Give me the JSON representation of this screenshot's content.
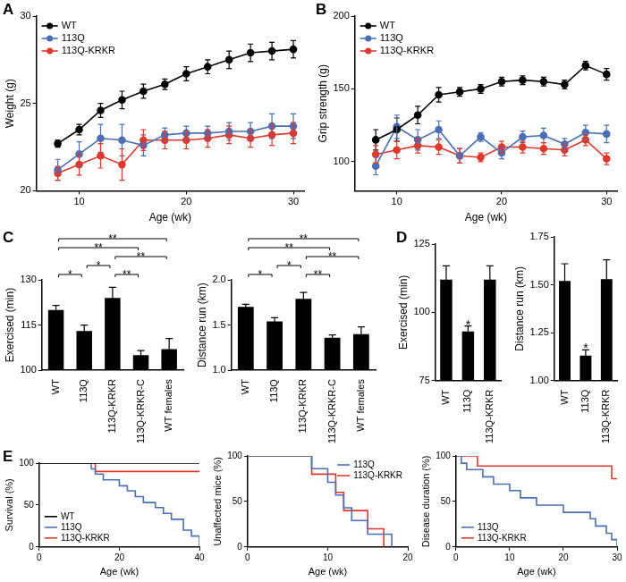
{
  "chart_data": [
    {
      "panel": "A",
      "type": "line",
      "x_label": "Age (wk)",
      "y_label": "Weight (g)",
      "grid": false,
      "legend": "upper left",
      "xlim": [
        6,
        31
      ],
      "xticks": [
        10,
        20,
        30
      ],
      "ylim": [
        20,
        30
      ],
      "yticks": [
        20,
        25,
        30
      ],
      "x": [
        8,
        10,
        12,
        14,
        16,
        18,
        20,
        22,
        24,
        26,
        28,
        30
      ],
      "series": [
        {
          "name": "WT",
          "color": "#000000",
          "marker": "circle",
          "line_style": "solid",
          "values": [
            22.7,
            23.5,
            24.6,
            25.2,
            25.7,
            26.1,
            26.7,
            27.1,
            27.5,
            27.9,
            28.0,
            28.1
          ],
          "errors": [
            0.2,
            0.3,
            0.4,
            0.5,
            0.4,
            0.3,
            0.4,
            0.4,
            0.5,
            0.5,
            0.5,
            0.5
          ]
        },
        {
          "name": "113Q",
          "color": "#4a6fb5",
          "marker": "circle",
          "line_style": "solid",
          "values": [
            21.2,
            22.1,
            23.0,
            22.9,
            22.6,
            23.2,
            23.3,
            23.3,
            23.4,
            23.4,
            23.7,
            23.7
          ],
          "errors": [
            0.6,
            0.7,
            0.8,
            0.9,
            0.6,
            0.4,
            0.4,
            0.4,
            0.5,
            0.5,
            0.7,
            0.7
          ]
        },
        {
          "name": "113Q-KRKR",
          "color": "#e0392b",
          "marker": "circle",
          "line_style": "solid",
          "values": [
            21.0,
            21.5,
            22.0,
            21.5,
            22.9,
            22.9,
            22.9,
            23.0,
            23.2,
            23.0,
            23.2,
            23.3
          ],
          "errors": [
            0.4,
            0.6,
            0.7,
            0.9,
            0.6,
            0.5,
            0.5,
            0.5,
            0.5,
            0.5,
            0.6,
            0.6
          ]
        }
      ]
    },
    {
      "panel": "B",
      "type": "line",
      "x_label": "Age (wk)",
      "y_label": "Grip strength (g)",
      "grid": false,
      "legend": "upper left",
      "xlim": [
        6,
        31
      ],
      "xticks": [
        10,
        20,
        30
      ],
      "ylim": [
        80,
        200
      ],
      "yticks": [
        100,
        150,
        200
      ],
      "x": [
        8,
        10,
        12,
        14,
        16,
        18,
        20,
        22,
        24,
        26,
        28,
        30
      ],
      "series": [
        {
          "name": "WT",
          "color": "#000000",
          "marker": "circle",
          "line_style": "solid",
          "values": [
            115,
            122,
            132,
            146,
            148,
            150,
            155,
            156,
            155,
            153,
            166,
            160
          ],
          "errors": [
            7,
            8,
            6,
            5,
            3,
            3,
            3,
            3,
            3,
            3,
            3,
            4
          ]
        },
        {
          "name": "113Q",
          "color": "#4a6fb5",
          "marker": "circle",
          "line_style": "solid",
          "values": [
            97,
            124,
            115,
            122,
            104,
            117,
            106,
            117,
            118,
            112,
            120,
            119
          ],
          "errors": [
            6,
            8,
            7,
            6,
            5,
            3,
            4,
            4,
            5,
            4,
            5,
            6
          ]
        },
        {
          "name": "113Q-KRKR",
          "color": "#e0392b",
          "marker": "circle",
          "line_style": "solid",
          "values": [
            105,
            108,
            111,
            110,
            104,
            103,
            110,
            110,
            109,
            108,
            115,
            102
          ],
          "errors": [
            6,
            6,
            5,
            5,
            5,
            3,
            4,
            4,
            4,
            4,
            4,
            4
          ]
        }
      ]
    },
    {
      "panel": "C",
      "type": "bar",
      "y_label": "Exercised (min)",
      "grid": false,
      "color": "#000000",
      "categories": [
        "WT",
        "113Q",
        "113Q-KRKR",
        "113Q-KRKR-C",
        "WT females"
      ],
      "values": [
        120,
        113,
        124,
        105,
        107
      ],
      "errors": [
        1.5,
        2,
        3.5,
        1.5,
        3.5
      ],
      "ylim": [
        100,
        130
      ],
      "yticks": [
        100,
        115,
        130
      ],
      "significance": [
        {
          "from": "WT",
          "to": "113Q",
          "label": "*"
        },
        {
          "from": "113Q",
          "to": "113Q-KRKR",
          "label": "*"
        },
        {
          "from": "WT",
          "to": "113Q-KRKR-C",
          "label": "**"
        },
        {
          "from": "WT",
          "to": "WT females",
          "label": "**"
        },
        {
          "from": "113Q-KRKR",
          "to": "113Q-KRKR-C",
          "label": "**"
        },
        {
          "from": "113Q-KRKR",
          "to": "WT females",
          "label": "**"
        }
      ]
    },
    {
      "type": "bar",
      "y_label": "Distance run (km)",
      "grid": false,
      "color": "#000000",
      "categories": [
        "WT",
        "113Q",
        "113Q-KRKR",
        "113Q-KRKR-C",
        "WT females"
      ],
      "values": [
        1.7,
        1.54,
        1.79,
        1.36,
        1.4
      ],
      "errors": [
        0.03,
        0.04,
        0.07,
        0.03,
        0.08
      ],
      "ylim": [
        1.0,
        2.0
      ],
      "yticks": [
        {
          "value": 1.0,
          "label": "1.0"
        },
        {
          "value": 1.5,
          "label": "1.5"
        },
        {
          "value": 2.0,
          "label": "2.0"
        }
      ],
      "significance": [
        {
          "from": "WT",
          "to": "113Q",
          "label": "*"
        },
        {
          "from": "113Q",
          "to": "113Q-KRKR",
          "label": "*"
        },
        {
          "from": "WT",
          "to": "113Q-KRKR-C",
          "label": "**"
        },
        {
          "from": "WT",
          "to": "WT females",
          "label": "**"
        },
        {
          "from": "113Q-KRKR",
          "to": "113Q-KRKR-C",
          "label": "**"
        },
        {
          "from": "113Q-KRKR",
          "to": "WT females",
          "label": "**"
        }
      ]
    },
    {
      "panel": "D",
      "type": "bar",
      "y_label": "Exercised (min)",
      "grid": false,
      "color": "#000000",
      "categories": [
        "WT",
        "113Q",
        "113Q-KRKR"
      ],
      "values": [
        112,
        93,
        112
      ],
      "errors": [
        5,
        2,
        5
      ],
      "ylim": [
        75,
        125
      ],
      "yticks": [
        75,
        100,
        125
      ],
      "stars": [
        {
          "category": "113Q",
          "label": "*"
        }
      ]
    },
    {
      "type": "bar",
      "y_label": "Distance run (km)",
      "grid": false,
      "color": "#000000",
      "categories": [
        "WT",
        "113Q",
        "113Q-KRKR"
      ],
      "values": [
        1.52,
        1.13,
        1.53
      ],
      "errors": [
        0.09,
        0.03,
        0.1
      ],
      "ylim": [
        1.0,
        1.75
      ],
      "yticks": [
        {
          "value": 1.0,
          "label": "1.00"
        },
        {
          "value": 1.25,
          "label": "1.25"
        },
        {
          "value": 1.5,
          "label": "1.50"
        },
        {
          "value": 1.75,
          "label": "1.75"
        }
      ],
      "stars": [
        {
          "category": "113Q",
          "label": "*"
        }
      ]
    },
    {
      "panel": "E",
      "type": "line",
      "x_label": "Age (wk)",
      "y_label": "Survival (%)",
      "grid": false,
      "legend": "lower left",
      "xlim": [
        0,
        40
      ],
      "xticks": [
        0,
        20,
        40
      ],
      "ylim": [
        0,
        100
      ],
      "yticks": [
        0,
        50,
        100
      ],
      "series": [
        {
          "name": "WT",
          "color": "#000000",
          "line_style": "step",
          "x": [
            0,
            40
          ],
          "values": [
            100,
            100
          ]
        },
        {
          "name": "113Q",
          "color": "#4a6fb5",
          "line_style": "step",
          "x": [
            0,
            13,
            14,
            16,
            20,
            22,
            24,
            26,
            29,
            31,
            33,
            36,
            38,
            40
          ],
          "values": [
            100,
            93,
            87,
            80,
            73,
            67,
            60,
            53,
            47,
            40,
            33,
            20,
            13,
            0
          ]
        },
        {
          "name": "113Q-KRKR",
          "color": "#e0392b",
          "line_style": "step",
          "x": [
            0,
            14,
            40
          ],
          "values": [
            100,
            90,
            90
          ]
        }
      ]
    },
    {
      "type": "line",
      "x_label": "Age (wk)",
      "y_label": "Unaffected mice (%)",
      "grid": false,
      "legend": "upper right",
      "xlim": [
        0,
        20
      ],
      "xticks": [
        0,
        10,
        20
      ],
      "ylim": [
        0,
        100
      ],
      "yticks": [
        0,
        50,
        100
      ],
      "series": [
        {
          "name": "113Q",
          "color": "#4a6fb5",
          "line_style": "step",
          "x": [
            0,
            8,
            10,
            11,
            12,
            13,
            15,
            18
          ],
          "values": [
            100,
            86,
            71,
            57,
            43,
            29,
            14,
            0
          ]
        },
        {
          "name": "113Q-KRKR",
          "color": "#e0392b",
          "line_style": "step",
          "x": [
            0,
            8,
            11,
            12,
            15,
            17
          ],
          "values": [
            100,
            80,
            60,
            40,
            20,
            0
          ]
        }
      ]
    },
    {
      "type": "line",
      "x_label": "Age (wk)",
      "y_label": "Disease duration (%)",
      "grid": false,
      "legend": "lower left",
      "xlim": [
        0,
        30
      ],
      "xticks": [
        0,
        10,
        20,
        30
      ],
      "ylim": [
        0,
        100
      ],
      "yticks": [
        0,
        50,
        100
      ],
      "series": [
        {
          "name": "113Q",
          "color": "#4a6fb5",
          "line_style": "step",
          "x": [
            0,
            1,
            2,
            5,
            7,
            10,
            12,
            15,
            20,
            25,
            26,
            28,
            29,
            30
          ],
          "values": [
            100,
            92,
            85,
            77,
            69,
            62,
            54,
            46,
            38,
            31,
            23,
            15,
            8,
            0
          ]
        },
        {
          "name": "113Q-KRKR",
          "color": "#e0392b",
          "line_style": "step",
          "x": [
            0,
            4,
            29,
            30
          ],
          "values": [
            100,
            89,
            75,
            75
          ]
        }
      ]
    }
  ]
}
